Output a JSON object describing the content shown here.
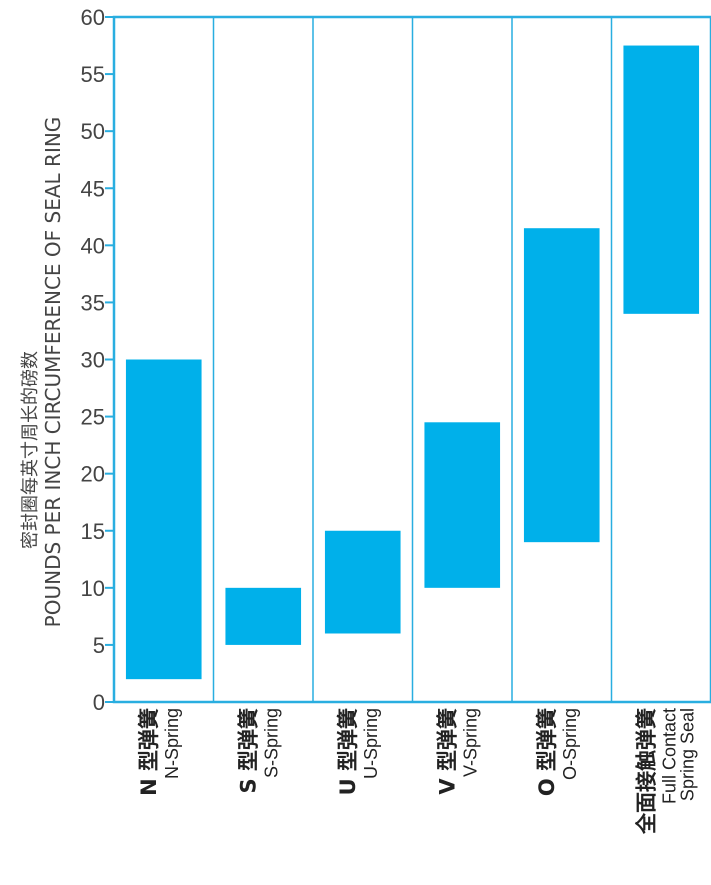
{
  "chart_data": {
    "type": "range-bar",
    "ylabel_cn": "密封圈每英寸周长的磅数",
    "ylabel_en": "POUNDS PER INCH CIRCUMFERENCE OF SEAL RING",
    "ylim": [
      0,
      60
    ],
    "yticks": [
      "0",
      "5",
      "10",
      "15",
      "20",
      "25",
      "30",
      "35",
      "40",
      "45",
      "50",
      "55",
      "60"
    ],
    "categories": [
      {
        "cn": "N 型弹簧",
        "en": [
          "N-Spring"
        ],
        "low": 2,
        "high": 30
      },
      {
        "cn": "S 型弹簧",
        "en": [
          "S-Spring"
        ],
        "low": 5,
        "high": 10
      },
      {
        "cn": "U 型弹簧",
        "en": [
          "U-Spring"
        ],
        "low": 6,
        "high": 15
      },
      {
        "cn": "V 型弹簧",
        "en": [
          "V-Spring"
        ],
        "low": 10,
        "high": 24.5
      },
      {
        "cn": "O 型弹簧",
        "en": [
          "O-Spring"
        ],
        "low": 14,
        "high": 41.5
      },
      {
        "cn": "全面接触弹簧",
        "en": [
          "Full Contact",
          "Spring Seal"
        ],
        "low": 34,
        "high": 57.5
      }
    ],
    "colors": {
      "bar": "#00b0ea",
      "frame": "#29aee0"
    }
  }
}
